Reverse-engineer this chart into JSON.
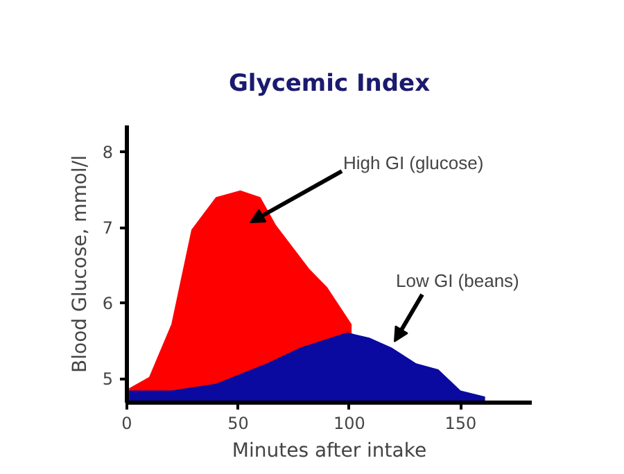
{
  "chart_data": {
    "type": "area",
    "title": "Glycemic Index",
    "xlabel": "Minutes after intake",
    "ylabel": "Blood Glucose, mmol/l",
    "xlim": [
      0,
      182
    ],
    "ylim": [
      4.68,
      8.35
    ],
    "xticks": [
      0,
      50,
      100,
      150
    ],
    "yticks": [
      5,
      6,
      7,
      8
    ],
    "grid": false,
    "series": [
      {
        "color": "#ff0000",
        "x": [
          1,
          10,
          20,
          29,
          40,
          51,
          60,
          67,
          82,
          90,
          101
        ],
        "values": [
          4.87,
          5.02,
          5.72,
          6.97,
          7.4,
          7.49,
          7.4,
          7.03,
          6.45,
          6.21,
          5.72
        ]
      },
      {
        "color": "#0a0aa0",
        "x": [
          1,
          20,
          40,
          63,
          78,
          99,
          109,
          119,
          130,
          140,
          150,
          161
        ],
        "values": [
          4.84,
          4.84,
          4.93,
          5.2,
          5.41,
          5.61,
          5.54,
          5.41,
          5.2,
          5.12,
          4.84,
          4.76
        ]
      }
    ],
    "annotations": [
      "High GI (glucose)",
      "Low GI (beans)"
    ]
  }
}
